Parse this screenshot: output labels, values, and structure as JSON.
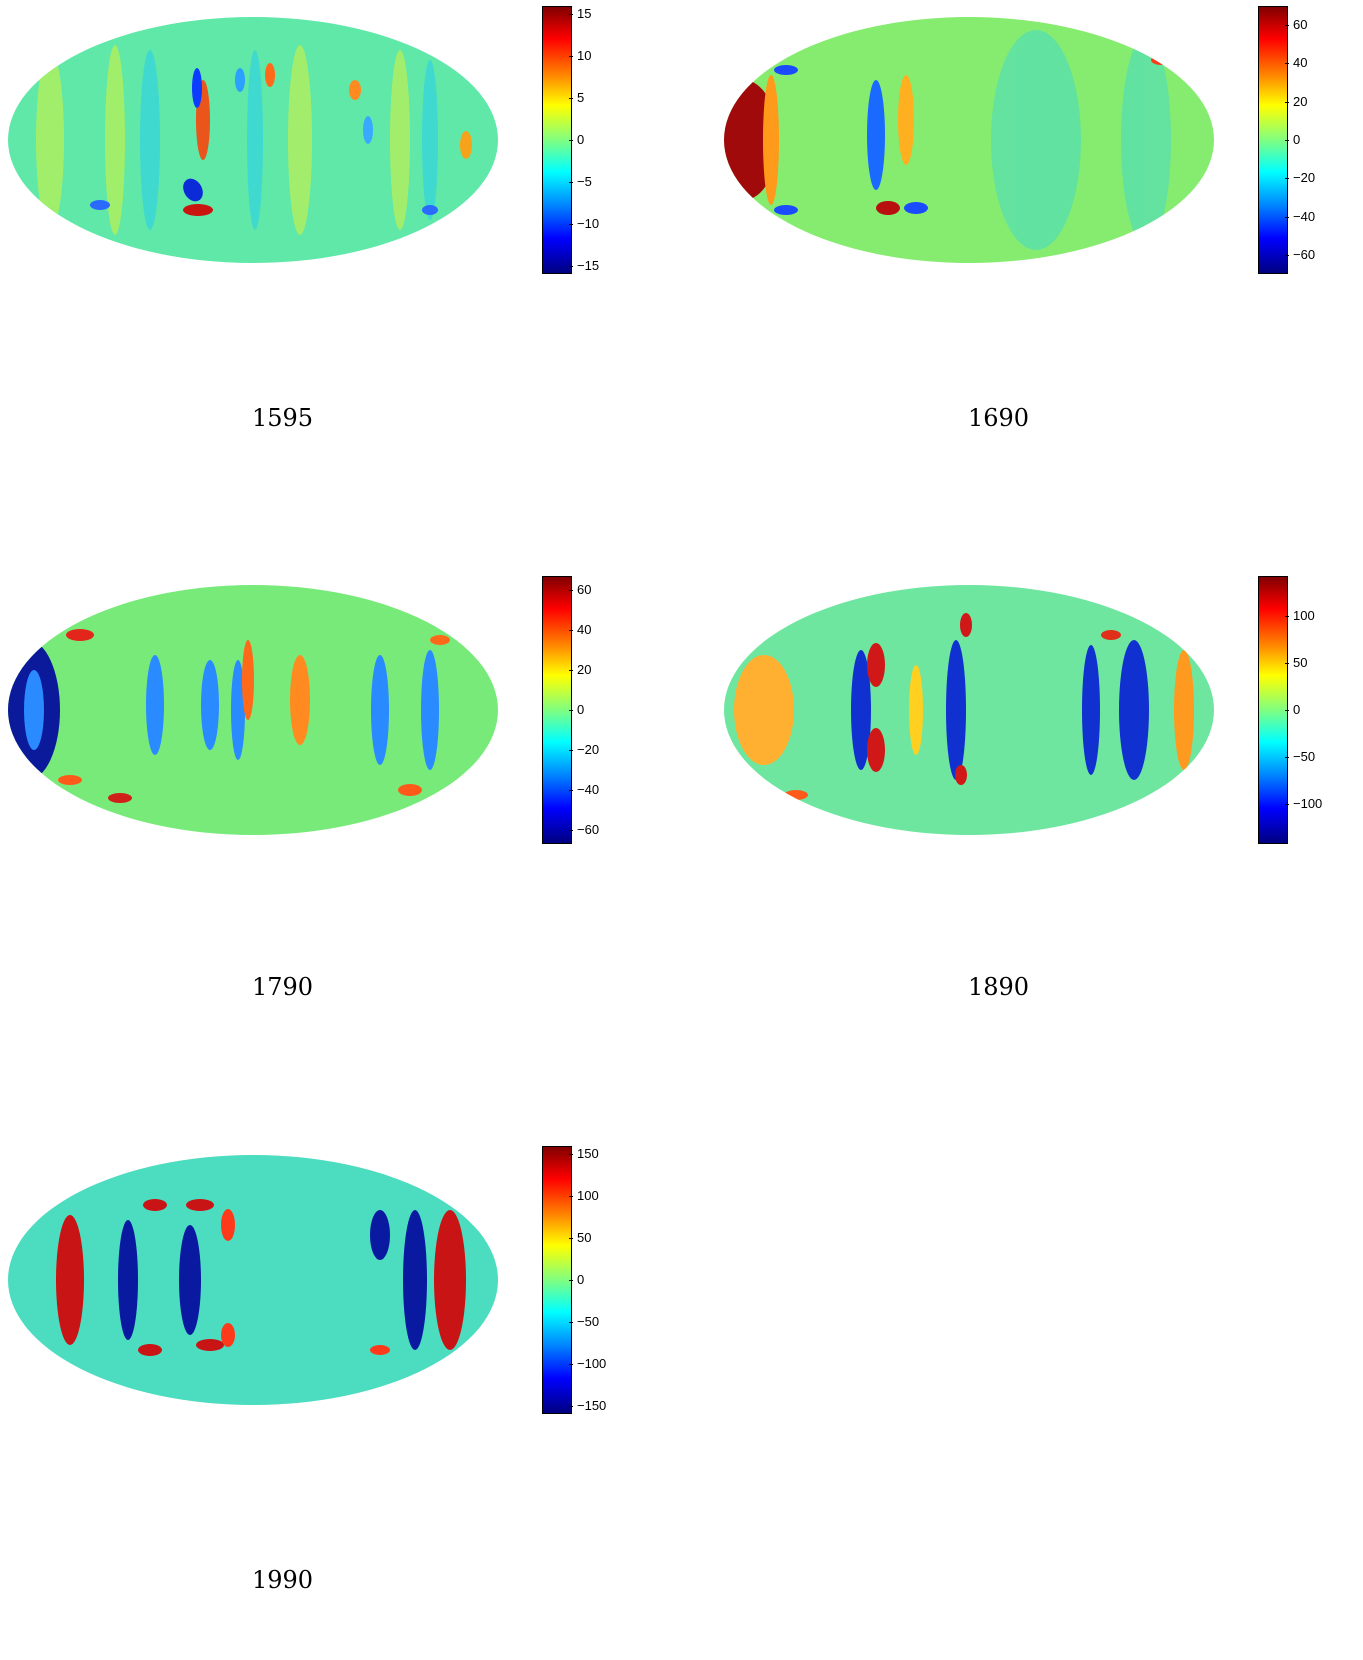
{
  "chart_data": [
    {
      "type": "heatmap",
      "projection": "mollweide",
      "colormap": "jet",
      "caption": "1595",
      "colorbar": {
        "range": [
          -16,
          16
        ],
        "ticks": [
          15,
          10,
          5,
          0,
          -5,
          -10,
          -15
        ],
        "tick_labels": [
          "15",
          "10",
          "5",
          "0",
          "−5",
          "−10",
          "−15"
        ]
      }
    },
    {
      "type": "heatmap",
      "projection": "mollweide",
      "colormap": "jet",
      "caption": "1690",
      "colorbar": {
        "range": [
          -70,
          70
        ],
        "ticks": [
          60,
          40,
          20,
          0,
          -20,
          -40,
          -60
        ],
        "tick_labels": [
          "60",
          "40",
          "20",
          "0",
          "−20",
          "−40",
          "−60"
        ]
      }
    },
    {
      "type": "heatmap",
      "projection": "mollweide",
      "colormap": "jet",
      "caption": "1790",
      "colorbar": {
        "range": [
          -67,
          67
        ],
        "ticks": [
          60,
          40,
          20,
          0,
          -20,
          -40,
          -60
        ],
        "tick_labels": [
          "60",
          "40",
          "20",
          "0",
          "−20",
          "−40",
          "−60"
        ]
      }
    },
    {
      "type": "heatmap",
      "projection": "mollweide",
      "colormap": "jet",
      "caption": "1890",
      "colorbar": {
        "range": [
          -142,
          142
        ],
        "ticks": [
          100,
          50,
          0,
          -50,
          -100
        ],
        "tick_labels": [
          "100",
          "50",
          "0",
          "−50",
          "−100"
        ]
      }
    },
    {
      "type": "heatmap",
      "projection": "mollweide",
      "colormap": "jet",
      "caption": "1990",
      "colorbar": {
        "range": [
          -160,
          160
        ],
        "ticks": [
          150,
          100,
          50,
          0,
          -50,
          -100,
          -150
        ],
        "tick_labels": [
          "150",
          "100",
          "50",
          "0",
          "−50",
          "−100",
          "−150"
        ]
      }
    }
  ]
}
